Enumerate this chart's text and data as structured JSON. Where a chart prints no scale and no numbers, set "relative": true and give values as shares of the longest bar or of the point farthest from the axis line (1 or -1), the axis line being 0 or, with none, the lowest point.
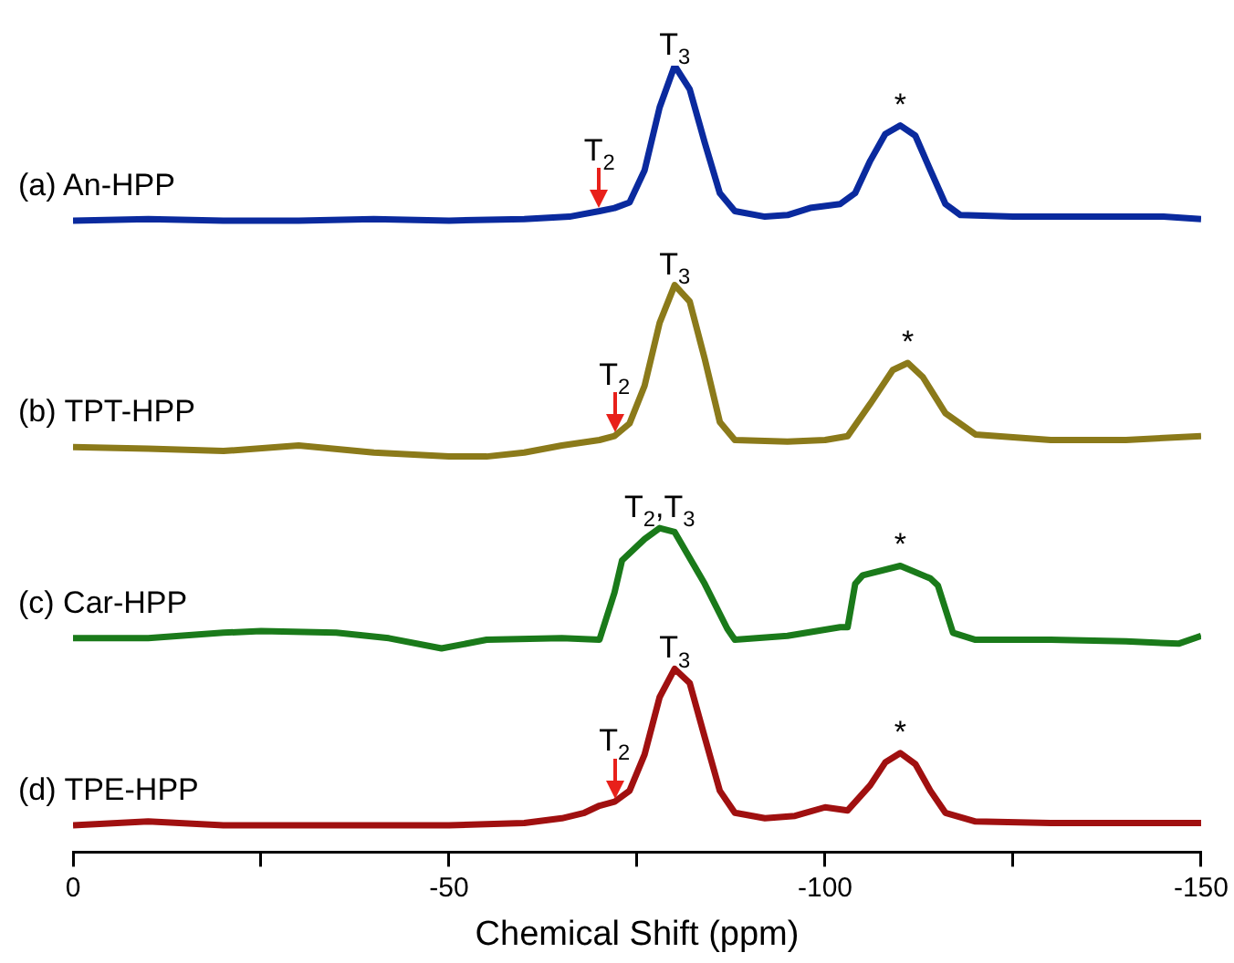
{
  "chart_data": {
    "type": "line",
    "relative": true,
    "xlabel": "Chemical Shift (ppm)",
    "xlim": [
      0,
      -150
    ],
    "xticks": [
      0,
      {
        "value": -25,
        "label": null
      },
      -50,
      {
        "value": -75,
        "label": null
      },
      -100,
      {
        "value": -125,
        "label": null
      },
      -150
    ],
    "legend": false,
    "series": [
      {
        "name": "(a) An-HPP",
        "color": "#0a2a9e",
        "x": [
          0,
          -10,
          -20,
          -30,
          -40,
          -50,
          -60,
          -66,
          -70,
          -72,
          -74,
          -76,
          -78,
          -80,
          -82,
          -84,
          -86,
          -88,
          -92,
          -95,
          -98,
          -102,
          -104,
          -106,
          -108,
          -110,
          -112,
          -114,
          -116,
          -118,
          -125,
          -135,
          -145,
          -150
        ],
        "values": [
          0.803,
          0.805,
          0.803,
          0.803,
          0.805,
          0.803,
          0.805,
          0.808,
          0.815,
          0.819,
          0.826,
          0.867,
          0.947,
          1,
          0.97,
          0.902,
          0.838,
          0.815,
          0.808,
          0.81,
          0.819,
          0.824,
          0.838,
          0.879,
          0.913,
          0.924,
          0.911,
          0.867,
          0.824,
          0.81,
          0.808,
          0.808,
          0.808,
          0.805
        ]
      },
      {
        "name": "(b) TPT-HPP",
        "color": "#8b7a1a",
        "x": [
          0,
          -10,
          -20,
          -30,
          -40,
          -50,
          -55,
          -60,
          -65,
          -70,
          -72,
          -74,
          -76,
          -78,
          -80,
          -82,
          -84,
          -86,
          -88,
          -95,
          -100,
          -103,
          -106,
          -109,
          -111,
          -113,
          -116,
          -120,
          -130,
          -140,
          -150
        ],
        "values": [
          0.515,
          0.513,
          0.51,
          0.517,
          0.508,
          0.503,
          0.503,
          0.508,
          0.517,
          0.524,
          0.529,
          0.545,
          0.593,
          0.673,
          0.721,
          0.7,
          0.627,
          0.547,
          0.524,
          0.522,
          0.524,
          0.529,
          0.57,
          0.613,
          0.622,
          0.604,
          0.558,
          0.531,
          0.524,
          0.524,
          0.529
        ]
      },
      {
        "name": "(c) Car-HPP",
        "color": "#1a7a1a",
        "x": [
          0,
          -10,
          -20,
          -25,
          -35,
          -42,
          -49,
          -55,
          -65,
          -70,
          -72,
          -73,
          -76,
          -78,
          -80,
          -84,
          -87,
          -88,
          -95,
          -102,
          -103,
          -104,
          -105,
          -110,
          -114,
          -115,
          -117,
          -120,
          -130,
          -140,
          -147,
          -150
        ],
        "values": [
          0.272,
          0.272,
          0.279,
          0.281,
          0.279,
          0.272,
          0.259,
          0.27,
          0.272,
          0.27,
          0.33,
          0.371,
          0.398,
          0.412,
          0.407,
          0.341,
          0.284,
          0.27,
          0.275,
          0.286,
          0.286,
          0.341,
          0.352,
          0.364,
          0.348,
          0.339,
          0.279,
          0.27,
          0.27,
          0.268,
          0.265,
          0.275
        ]
      },
      {
        "name": "(d) TPE-HPP",
        "color": "#a01010",
        "x": [
          0,
          -10,
          -20,
          -30,
          -40,
          -50,
          -60,
          -65,
          -68,
          -70,
          -72,
          -74,
          -76,
          -78,
          -80,
          -82,
          -84,
          -86,
          -88,
          -92,
          -96,
          -100,
          -103,
          -106,
          -108,
          -110,
          -112,
          -114,
          -116,
          -120,
          -130,
          -140,
          -150
        ],
        "values": [
          0.034,
          0.039,
          0.034,
          0.034,
          0.034,
          0.034,
          0.037,
          0.043,
          0.05,
          0.059,
          0.064,
          0.078,
          0.124,
          0.197,
          0.233,
          0.215,
          0.146,
          0.078,
          0.05,
          0.043,
          0.046,
          0.057,
          0.053,
          0.085,
          0.114,
          0.126,
          0.112,
          0.078,
          0.05,
          0.039,
          0.037,
          0.037,
          0.037
        ]
      }
    ],
    "annotations": [
      {
        "text": "T$_{3}$",
        "x": -80,
        "y": 1
      },
      {
        "text": "T$_{2}$",
        "x": -70,
        "y": 0.815
      },
      {
        "text": "*",
        "x": -110,
        "y": 0.924
      },
      {
        "text": "T$_{3}$",
        "x": -80,
        "y": 0.721
      },
      {
        "text": "T$_{2}$",
        "x": -72,
        "y": 0.529
      },
      {
        "text": "*",
        "x": -111,
        "y": 0.622
      },
      {
        "text": "T$_{2}$,T$_{3}$",
        "x": -78,
        "y": 0.412
      },
      {
        "text": "*",
        "x": -110,
        "y": 0.364
      },
      {
        "text": "T$_{3}$",
        "x": -80,
        "y": 0.233
      },
      {
        "text": "T$_{2}$",
        "x": -72,
        "y": 0.064
      },
      {
        "text": "*",
        "x": -110,
        "y": 0.126
      }
    ]
  }
}
